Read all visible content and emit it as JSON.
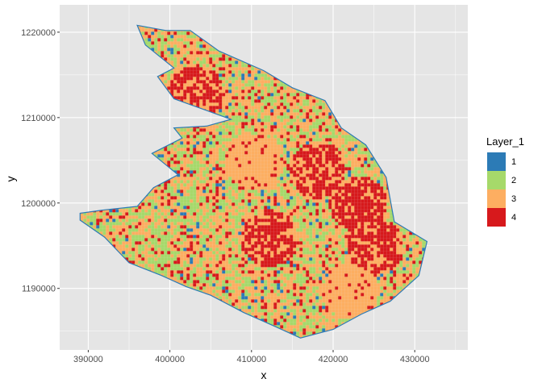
{
  "chart_data": {
    "type": "heatmap",
    "title": "",
    "xlabel": "x",
    "ylabel": "y",
    "xlim": [
      386500,
      436500
    ],
    "ylim": [
      1182800,
      1223200
    ],
    "x_ticks": [
      390000,
      400000,
      410000,
      420000,
      430000
    ],
    "x_tick_labels": [
      "390000",
      "400000",
      "410000",
      "420000",
      "430000"
    ],
    "y_ticks": [
      1190000,
      1200000,
      1210000,
      1220000
    ],
    "y_tick_labels": [
      "1190000",
      "1200000",
      "1210000",
      "1220000"
    ],
    "grid": true,
    "legend": {
      "title": "Layer_1",
      "position": "right",
      "entries": [
        {
          "label": "1",
          "color": "#2c7bb6"
        },
        {
          "label": "2",
          "color": "#a6d96a"
        },
        {
          "label": "3",
          "color": "#fdae61"
        },
        {
          "label": "4",
          "color": "#d7191c"
        }
      ]
    },
    "panel_background": "#e5e5e5",
    "grid_color": "#ffffff",
    "region_boundary": [
      [
        389000,
        1198800
      ],
      [
        392000,
        1199200
      ],
      [
        396000,
        1199600
      ],
      [
        398000,
        1201800
      ],
      [
        401000,
        1203300
      ],
      [
        397800,
        1205800
      ],
      [
        401500,
        1207600
      ],
      [
        400500,
        1208800
      ],
      [
        404500,
        1209000
      ],
      [
        407500,
        1209800
      ],
      [
        400500,
        1212200
      ],
      [
        398500,
        1214800
      ],
      [
        400500,
        1215800
      ],
      [
        397000,
        1218500
      ],
      [
        396000,
        1220800
      ],
      [
        399500,
        1220200
      ],
      [
        402500,
        1220200
      ],
      [
        406000,
        1217800
      ],
      [
        411500,
        1215500
      ],
      [
        415000,
        1213500
      ],
      [
        419000,
        1212000
      ],
      [
        421000,
        1208800
      ],
      [
        424000,
        1206800
      ],
      [
        426500,
        1203000
      ],
      [
        427500,
        1197800
      ],
      [
        431500,
        1195500
      ],
      [
        430500,
        1191500
      ],
      [
        427000,
        1188500
      ],
      [
        423500,
        1187000
      ],
      [
        420000,
        1185200
      ],
      [
        416000,
        1184200
      ],
      [
        413000,
        1185500
      ],
      [
        409000,
        1187200
      ],
      [
        405000,
        1189200
      ],
      [
        402000,
        1190200
      ],
      [
        399000,
        1191500
      ],
      [
        395000,
        1193000
      ],
      [
        392000,
        1196000
      ],
      [
        389000,
        1198000
      ]
    ],
    "hotspots": [
      {
        "x": 423000,
        "y": 1200000,
        "class": "4"
      },
      {
        "x": 418000,
        "y": 1204000,
        "class": "4"
      },
      {
        "x": 412000,
        "y": 1196000,
        "class": "4"
      },
      {
        "x": 425000,
        "y": 1195000,
        "class": "4"
      },
      {
        "x": 403000,
        "y": 1213000,
        "class": "4"
      },
      {
        "x": 422000,
        "y": 1190000,
        "class": "3"
      },
      {
        "x": 398000,
        "y": 1194000,
        "class": "2"
      },
      {
        "x": 410000,
        "y": 1205000,
        "class": "3"
      }
    ]
  }
}
